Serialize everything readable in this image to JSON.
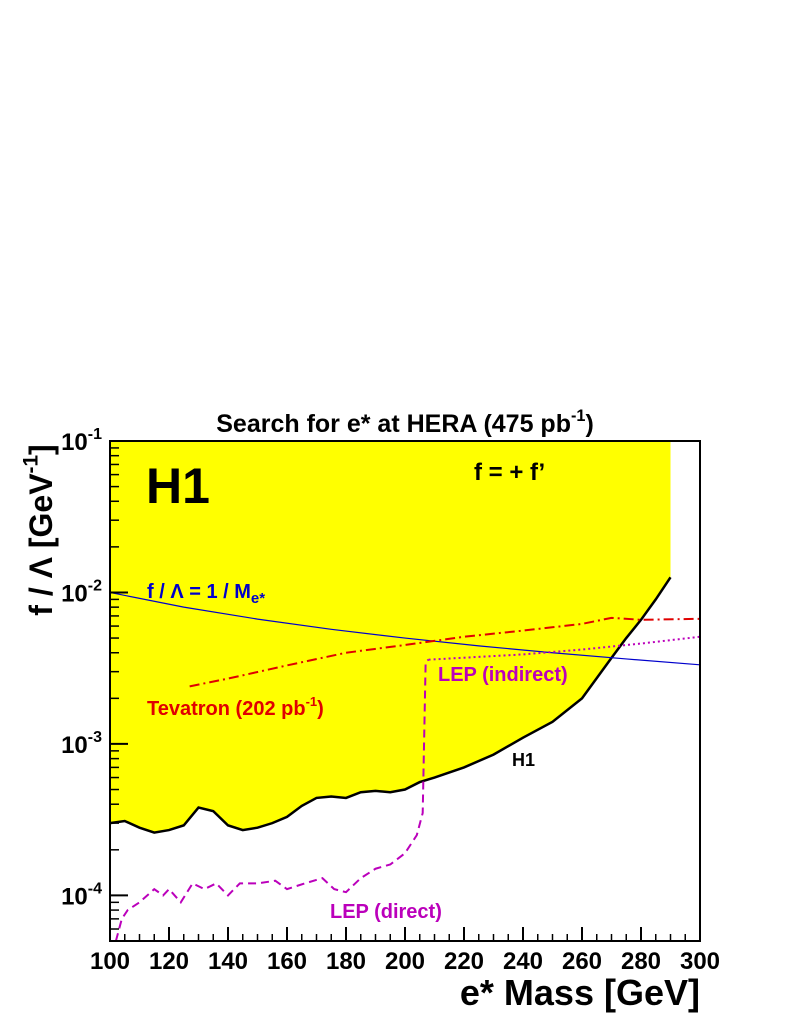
{
  "chart_data": {
    "type": "line",
    "title": {
      "text": "Search for e* at HERA (475 pb",
      "sup": "-1",
      "tail": ")"
    },
    "x_label": "e* Mass [GeV]",
    "y_label": {
      "text": "f / Λ [GeV",
      "sup": "-1",
      "tail": "]"
    },
    "log_y": true,
    "xlim": [
      100,
      300
    ],
    "xticks": [
      100,
      120,
      140,
      160,
      180,
      200,
      220,
      240,
      260,
      280,
      300
    ],
    "ylim": [
      5e-05,
      0.1
    ],
    "yticks": [
      {
        "value": 0.0001,
        "label": "10",
        "sup": "-4"
      },
      {
        "value": 0.001,
        "label": "10",
        "sup": "-3"
      },
      {
        "value": 0.01,
        "label": "10",
        "sup": "-2"
      },
      {
        "value": 0.1,
        "label": "10",
        "sup": "-1"
      }
    ],
    "annotations": [
      "H1",
      "f = + f’"
    ],
    "series": [
      {
        "name": "H1",
        "color": "#000000",
        "style": "solid",
        "fill": "#ffff00",
        "x": [
          100,
          105,
          110,
          115,
          120,
          125,
          130,
          135,
          140,
          145,
          150,
          155,
          160,
          165,
          170,
          175,
          180,
          185,
          190,
          195,
          200,
          205,
          210,
          220,
          230,
          240,
          250,
          260,
          270,
          275,
          280,
          285,
          290
        ],
        "values": [
          0.0003,
          0.00031,
          0.00028,
          0.00026,
          0.00027,
          0.00029,
          0.00038,
          0.00036,
          0.00029,
          0.00027,
          0.00028,
          0.0003,
          0.00033,
          0.00039,
          0.00044,
          0.00045,
          0.00044,
          0.00048,
          0.00049,
          0.00048,
          0.0005,
          0.00056,
          0.0006,
          0.0007,
          0.00085,
          0.0011,
          0.0014,
          0.002,
          0.0037,
          0.005,
          0.0066,
          0.009,
          0.0126
        ]
      },
      {
        "name": "f / Λ  = 1 / M",
        "sub": "e*",
        "color": "#0000cc",
        "style": "thin",
        "x": [
          100,
          125,
          150,
          175,
          200,
          225,
          250,
          275,
          300
        ],
        "values": [
          0.01,
          0.008,
          0.00667,
          0.00571,
          0.005,
          0.00444,
          0.004,
          0.00364,
          0.00333
        ]
      },
      {
        "name": "Tevatron (202 pb",
        "sup": "-1",
        "tail": ")",
        "color": "#e00000",
        "style": "dashdot",
        "x": [
          127,
          140,
          160,
          180,
          200,
          220,
          240,
          260,
          270,
          280,
          300
        ],
        "values": [
          0.0024,
          0.0027,
          0.0033,
          0.004,
          0.0045,
          0.0051,
          0.0056,
          0.0062,
          0.0068,
          0.0066,
          0.0067
        ]
      },
      {
        "name": "LEP (indirect)",
        "color": "#bb00bb",
        "style": "dotted",
        "x": [
          208,
          240,
          260,
          280,
          300
        ],
        "values": [
          0.0036,
          0.0039,
          0.0042,
          0.0046,
          0.0051
        ]
      },
      {
        "name": "LEP (direct)",
        "color": "#bb00bb",
        "style": "dashed",
        "x": [
          102,
          104,
          106,
          110,
          115,
          118,
          120,
          124,
          128,
          132,
          136,
          140,
          144,
          150,
          156,
          160,
          166,
          172,
          176,
          180,
          185,
          190,
          195,
          200,
          204,
          206,
          207,
          208
        ],
        "values": [
          5e-05,
          7e-05,
          8e-05,
          9e-05,
          0.00011,
          0.0001,
          0.00011,
          9e-05,
          0.00012,
          0.00011,
          0.00012,
          0.0001,
          0.00012,
          0.00012,
          0.000125,
          0.00011,
          0.00012,
          0.00013,
          0.00011,
          0.000105,
          0.00013,
          0.00015,
          0.00016,
          0.00019,
          0.00025,
          0.00035,
          0.0035,
          0.0036
        ]
      }
    ]
  }
}
